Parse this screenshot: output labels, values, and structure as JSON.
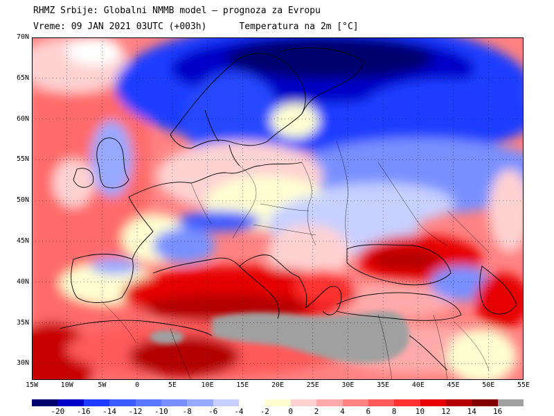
{
  "header": {
    "line1": "RHMZ Srbije: Globalni NMMB model — prognoza za Evropu",
    "line2": "Vreme: 09 JAN 2021 03UTC (+003h)      Temperatura na 2m [°C]"
  },
  "map": {
    "lat_labels": [
      "70N",
      "65N",
      "60N",
      "55N",
      "50N",
      "45N",
      "40N",
      "35N",
      "30N"
    ],
    "lon_labels": [
      "15W",
      "10W",
      "5W",
      "0",
      "5E",
      "10E",
      "15E",
      "20E",
      "25E",
      "30E",
      "35E",
      "40E",
      "45E",
      "50E",
      "55E"
    ],
    "lon_range": [
      -15,
      55
    ],
    "lat_range": [
      28,
      70
    ],
    "grid": "dotted"
  },
  "legend": {
    "colors": [
      "#00006e",
      "#0000c8",
      "#1e3cff",
      "#3c5cff",
      "#5a78ff",
      "#7890ff",
      "#96a8ff",
      "#c8d0ff",
      "#ffffff",
      "#ffffd2",
      "#ffd2d2",
      "#ffaaaa",
      "#ff8282",
      "#ff5a5a",
      "#ff3232",
      "#e60000",
      "#b40000",
      "#820000",
      "#a0a0a0"
    ],
    "labels": [
      "-20",
      "-16",
      "-14",
      "-12",
      "-10",
      "-8",
      "-6",
      "-4",
      "-2",
      "0",
      "2",
      "4",
      "6",
      "8",
      "10",
      "12",
      "14",
      "16"
    ],
    "sea_color": "#a0a0a0"
  }
}
